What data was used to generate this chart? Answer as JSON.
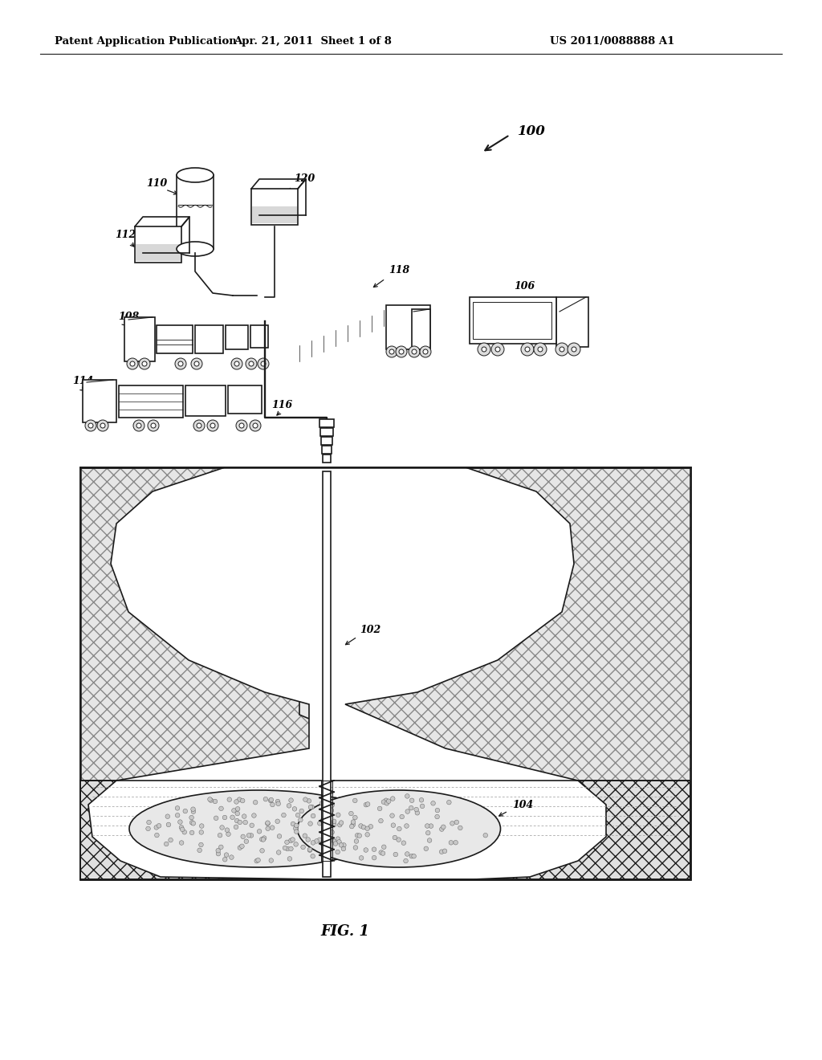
{
  "title_left": "Patent Application Publication",
  "title_mid": "Apr. 21, 2011  Sheet 1 of 8",
  "title_right": "US 2011/0088888 A1",
  "fig_label": "FIG. 1",
  "label_100": "100",
  "label_102": "102",
  "label_104": "104",
  "label_106": "106",
  "label_108": "108",
  "label_110": "110",
  "label_112": "112",
  "label_114": "114",
  "label_116": "116",
  "label_118": "118",
  "label_120": "120",
  "bg_color": "#ffffff",
  "line_color": "#1a1a1a",
  "hatch_gray": "#cccccc",
  "font_size_header": 9.5,
  "font_size_label": 9,
  "font_size_fig": 13
}
